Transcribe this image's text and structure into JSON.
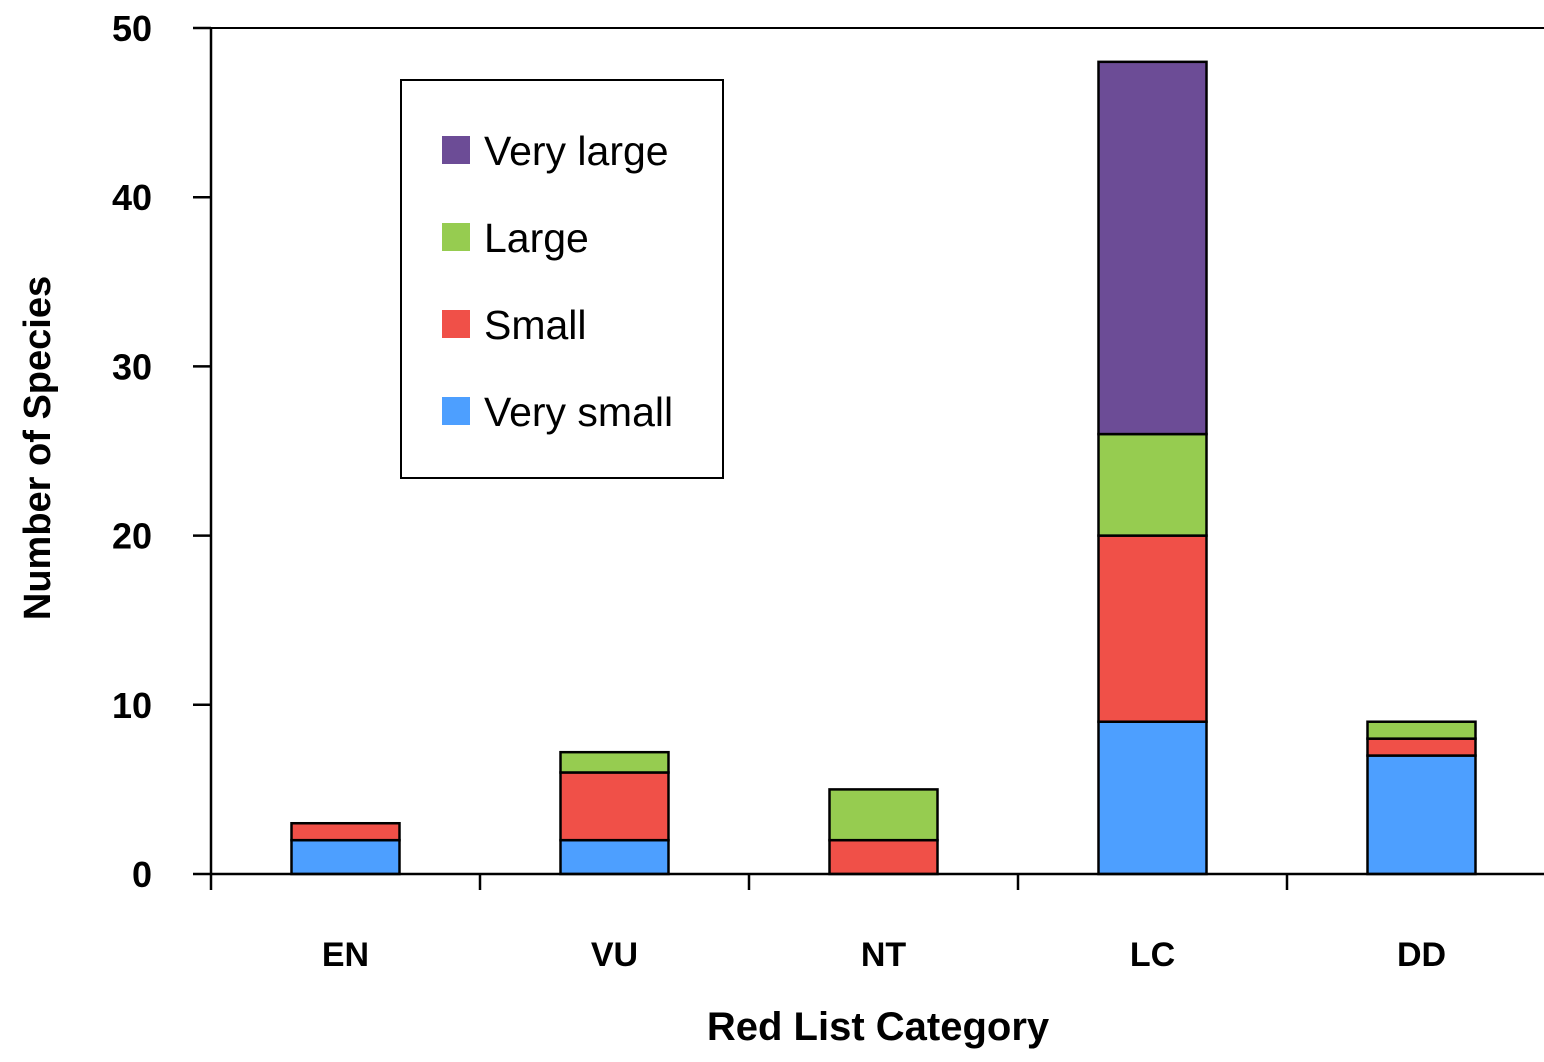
{
  "chart_data": {
    "type": "bar",
    "stacked": true,
    "categories": [
      "EN",
      "VU",
      "NT",
      "LC",
      "DD"
    ],
    "series": [
      {
        "name": "Very small",
        "color": "#4d9fff",
        "values": [
          2,
          2,
          0,
          9,
          7
        ]
      },
      {
        "name": "Small",
        "color": "#f05048",
        "values": [
          1,
          4,
          2,
          11,
          1
        ]
      },
      {
        "name": "Large",
        "color": "#96cc50",
        "values": [
          0,
          1.2,
          3,
          6,
          1
        ]
      },
      {
        "name": "Very large",
        "color": "#6c4c96",
        "values": [
          0,
          0,
          0,
          22,
          0
        ]
      }
    ],
    "legend_order": [
      "Very large",
      "Large",
      "Small",
      "Very small"
    ],
    "xlabel": "Red List Category",
    "ylabel": "Number of Species",
    "ylim": [
      0,
      50
    ],
    "yticks": [
      0,
      10,
      20,
      30,
      40,
      50
    ],
    "grid": false,
    "legend_position": "top-left"
  }
}
